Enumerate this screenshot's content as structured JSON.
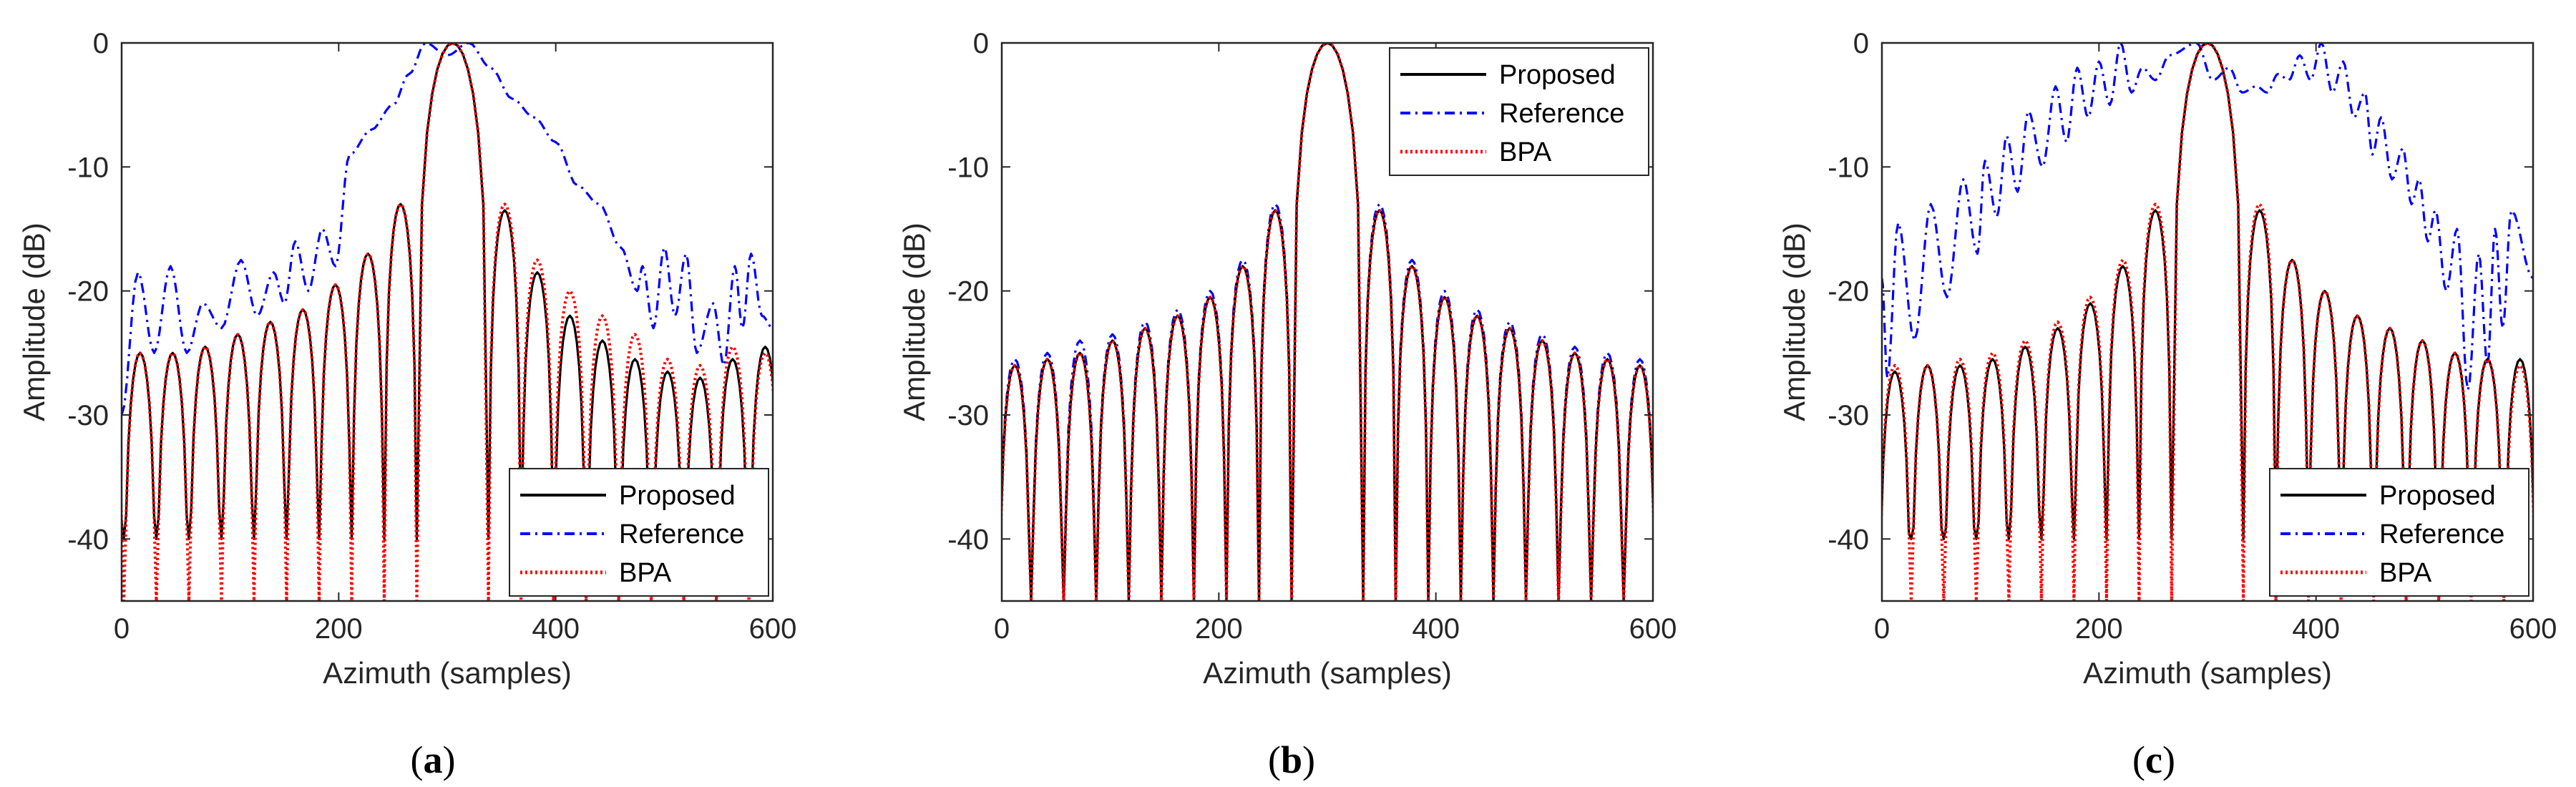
{
  "colors": {
    "proposed": "#000000",
    "reference": "#0000ff",
    "bpa": "#ff0000",
    "axis": "#262626",
    "background": "#ffffff"
  },
  "chart_data": [
    {
      "id": "a",
      "type": "line",
      "caption": {
        "open": "(",
        "letter": "a",
        "close": ")"
      },
      "xlabel": "Azimuth (samples)",
      "ylabel": "Amplitude (dB)",
      "xlim": [
        0,
        600
      ],
      "ylim": [
        -45,
        0
      ],
      "xticks": [
        0,
        200,
        400,
        600
      ],
      "yticks": [
        0,
        -10,
        -20,
        -30,
        -40
      ],
      "legend_position": "bottom-right",
      "series": [
        {
          "name": "Proposed",
          "style": "solid",
          "mainlobe_center": 305,
          "lobe_spacing": 30,
          "left_sidelobe_peaks": [
            -13,
            -17,
            -19.5,
            -21.5,
            -22.5,
            -23.5,
            -24.5,
            -25,
            -25,
            -25.5
          ],
          "right_sidelobe_peaks": [
            -13.5,
            -18.5,
            -22,
            -24,
            -25.5,
            -26.5,
            -27,
            -25.5,
            -24.5
          ],
          "null_floor": -40
        },
        {
          "name": "Reference",
          "style": "dashdot",
          "peaks": [
            [
              0,
              -30
            ],
            [
              15,
              -18.5
            ],
            [
              45,
              -18
            ],
            [
              75,
              -21
            ],
            [
              110,
              -17.5
            ],
            [
              140,
              -18.5
            ],
            [
              160,
              -16
            ],
            [
              185,
              -15
            ],
            [
              210,
              -9
            ],
            [
              230,
              -7
            ],
            [
              250,
              -5
            ],
            [
              265,
              -2.5
            ],
            [
              280,
              0
            ],
            [
              300,
              -1
            ],
            [
              320,
              0
            ],
            [
              340,
              -2
            ],
            [
              360,
              -4.5
            ],
            [
              380,
              -6
            ],
            [
              400,
              -8
            ],
            [
              420,
              -11.5
            ],
            [
              440,
              -13
            ],
            [
              460,
              -16.5
            ],
            [
              480,
              -18
            ],
            [
              500,
              -16.5
            ],
            [
              520,
              -17
            ],
            [
              545,
              -21
            ],
            [
              565,
              -18
            ],
            [
              580,
              -17
            ],
            [
              600,
              -23
            ]
          ],
          "nulls": [
            [
              30,
              -25
            ],
            [
              60,
              -25
            ],
            [
              92,
              -23
            ],
            [
              125,
              -22
            ],
            [
              150,
              -21
            ],
            [
              172,
              -20
            ],
            [
              197,
              -18
            ],
            [
              475,
              -20
            ],
            [
              490,
              -23
            ],
            [
              510,
              -22
            ],
            [
              530,
              -25
            ],
            [
              555,
              -26
            ],
            [
              572,
              -23
            ],
            [
              590,
              -22
            ]
          ]
        },
        {
          "name": "BPA",
          "style": "dotted",
          "mainlobe_center": 305,
          "lobe_spacing": 30,
          "left_sidelobe_peaks": [
            -13,
            -17,
            -19.5,
            -21.5,
            -22.5,
            -23.5,
            -24.5,
            -25,
            -25,
            -25.5
          ],
          "right_sidelobe_peaks": [
            -13,
            -17.5,
            -20,
            -22,
            -23.5,
            -25.5,
            -26,
            -24.5,
            -25
          ],
          "null_floor": -45
        }
      ]
    },
    {
      "id": "b",
      "type": "line",
      "caption": {
        "open": "(",
        "letter": "b",
        "close": ")"
      },
      "xlabel": "Azimuth (samples)",
      "ylabel": "Amplitude (dB)",
      "xlim": [
        0,
        600
      ],
      "ylim": [
        -45,
        0
      ],
      "xticks": [
        0,
        200,
        400,
        600
      ],
      "yticks": [
        0,
        -10,
        -20,
        -30,
        -40
      ],
      "legend_position": "top-right",
      "series": [
        {
          "name": "Proposed",
          "style": "solid",
          "mainlobe_center": 300,
          "lobe_spacing": 30,
          "left_sidelobe_peaks": [
            -13.5,
            -18,
            -20.5,
            -22,
            -23,
            -24,
            -25,
            -25.5,
            -26,
            -26
          ],
          "right_sidelobe_peaks": [
            -13.5,
            -18,
            -20.5,
            -22,
            -23,
            -24,
            -25,
            -25.5,
            -26,
            -26
          ],
          "null_floor": -45
        },
        {
          "name": "Reference",
          "style": "dashdot",
          "mainlobe_center": 300,
          "lobe_spacing": 30,
          "left_sidelobe_peaks": [
            -13,
            -17.5,
            -20,
            -21.5,
            -22.5,
            -23.5,
            -24,
            -25,
            -25.5,
            -26
          ],
          "right_sidelobe_peaks": [
            -13,
            -17.5,
            -20,
            -21.5,
            -22.5,
            -23.5,
            -24.5,
            -25,
            -25.5,
            -26
          ],
          "null_floor": -45
        },
        {
          "name": "BPA",
          "style": "dotted",
          "mainlobe_center": 300,
          "lobe_spacing": 30,
          "left_sidelobe_peaks": [
            -13.5,
            -18,
            -20.5,
            -22,
            -23,
            -24,
            -25,
            -25.5,
            -26,
            -26
          ],
          "right_sidelobe_peaks": [
            -13.5,
            -18,
            -20.5,
            -22,
            -23,
            -24,
            -25,
            -25.5,
            -26,
            -26
          ],
          "null_floor": -45
        }
      ]
    },
    {
      "id": "c",
      "type": "line",
      "caption": {
        "open": "(",
        "letter": "c",
        "close": ")"
      },
      "xlabel": "Azimuth (samples)",
      "ylabel": "Amplitude (dB)",
      "xlim": [
        0,
        600
      ],
      "ylim": [
        -45,
        0
      ],
      "xticks": [
        0,
        200,
        400,
        600
      ],
      "yticks": [
        0,
        -10,
        -20,
        -30,
        -40
      ],
      "legend_position": "bottom-right",
      "series": [
        {
          "name": "Proposed",
          "style": "solid",
          "mainlobe_center": 300,
          "lobe_spacing": 30,
          "left_sidelobe_peaks": [
            -13.5,
            -18,
            -21,
            -23,
            -24.5,
            -25.5,
            -26,
            -26,
            -26.5,
            -26.5
          ],
          "right_sidelobe_peaks": [
            -13.5,
            -17.5,
            -20,
            -22,
            -23,
            -24,
            -25,
            -25.5,
            -25.5
          ],
          "null_floor": -40
        },
        {
          "name": "Reference",
          "style": "dashdot",
          "peaks": [
            [
              0,
              -19
            ],
            [
              15,
              -14.5
            ],
            [
              45,
              -13
            ],
            [
              75,
              -11
            ],
            [
              95,
              -9.5
            ],
            [
              115,
              -7.5
            ],
            [
              135,
              -5.5
            ],
            [
              160,
              -3.5
            ],
            [
              180,
              -2
            ],
            [
              200,
              -1.5
            ],
            [
              220,
              0
            ],
            [
              240,
              -2
            ],
            [
              265,
              -1
            ],
            [
              290,
              0
            ],
            [
              320,
              -2
            ],
            [
              345,
              -3.5
            ],
            [
              365,
              -2.5
            ],
            [
              385,
              -1
            ],
            [
              405,
              0
            ],
            [
              425,
              -1.5
            ],
            [
              445,
              -4
            ],
            [
              460,
              -6
            ],
            [
              480,
              -8.5
            ],
            [
              495,
              -11
            ],
            [
              510,
              -13.5
            ],
            [
              530,
              -15
            ],
            [
              550,
              -17
            ],
            [
              565,
              -15
            ],
            [
              580,
              -13.5
            ],
            [
              600,
              -19
            ]
          ],
          "nulls": [
            [
              5,
              -27
            ],
            [
              30,
              -24
            ],
            [
              60,
              -20.5
            ],
            [
              88,
              -17
            ],
            [
              106,
              -14
            ],
            [
              125,
              -12
            ],
            [
              148,
              -10
            ],
            [
              170,
              -8
            ],
            [
              190,
              -6
            ],
            [
              210,
              -5
            ],
            [
              230,
              -4
            ],
            [
              252,
              -3
            ],
            [
              305,
              -3
            ],
            [
              332,
              -4
            ],
            [
              355,
              -4
            ],
            [
              375,
              -3
            ],
            [
              395,
              -3
            ],
            [
              415,
              -4
            ],
            [
              435,
              -6
            ],
            [
              452,
              -9
            ],
            [
              470,
              -11
            ],
            [
              488,
              -13
            ],
            [
              503,
              -16
            ],
            [
              520,
              -20
            ],
            [
              540,
              -28
            ],
            [
              558,
              -26
            ],
            [
              572,
              -23
            ]
          ]
        },
        {
          "name": "BPA",
          "style": "dotted",
          "mainlobe_center": 300,
          "lobe_spacing": 30,
          "left_sidelobe_peaks": [
            -13,
            -17.5,
            -20.5,
            -22.5,
            -24,
            -25,
            -25.5,
            -26,
            -26,
            -26.5
          ],
          "right_sidelobe_peaks": [
            -13,
            -17.5,
            -20,
            -22,
            -23,
            -24,
            -25,
            -25.5,
            -26
          ],
          "null_floor": -45
        }
      ]
    }
  ]
}
